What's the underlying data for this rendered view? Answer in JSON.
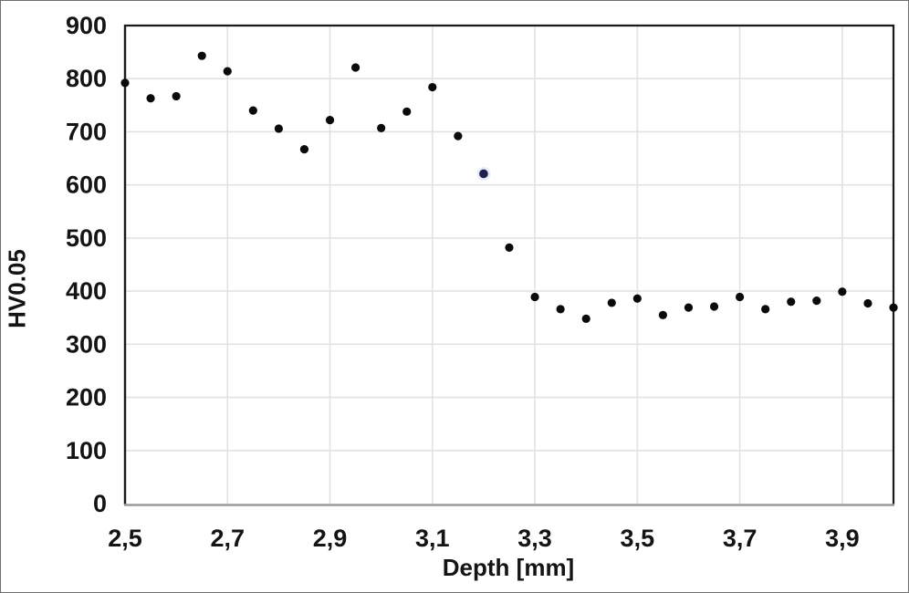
{
  "chart_data": {
    "type": "scatter",
    "title": "",
    "xlabel": "Depth [mm]",
    "ylabel": "HV0.05",
    "xlim": [
      2.5,
      4.0
    ],
    "ylim": [
      0,
      900
    ],
    "grid": true,
    "legend": "none",
    "decimal_separator": ",",
    "marker_color": "#0a0a0a",
    "gridline_color": "#e2e2e2",
    "plot_border_color": "#1a1a1a",
    "x_axis_line_color": "#9a9a9a",
    "x_ticks": [
      {
        "label": "2,5",
        "value": 2.5
      },
      {
        "label": "2,7",
        "value": 2.7
      },
      {
        "label": "2,9",
        "value": 2.9
      },
      {
        "label": "3,1",
        "value": 3.1
      },
      {
        "label": "3,3",
        "value": 3.3
      },
      {
        "label": "3,5",
        "value": 3.5
      },
      {
        "label": "3,7",
        "value": 3.7
      },
      {
        "label": "3,9",
        "value": 3.9
      }
    ],
    "y_ticks": [
      {
        "label": "0",
        "value": 0
      },
      {
        "label": "100",
        "value": 100
      },
      {
        "label": "200",
        "value": 200
      },
      {
        "label": "300",
        "value": 300
      },
      {
        "label": "400",
        "value": 400
      },
      {
        "label": "500",
        "value": 500
      },
      {
        "label": "600",
        "value": 600
      },
      {
        "label": "700",
        "value": 700
      },
      {
        "label": "800",
        "value": 800
      },
      {
        "label": "900",
        "value": 900
      }
    ],
    "x": [
      2.5,
      2.55,
      2.6,
      2.65,
      2.7,
      2.75,
      2.8,
      2.85,
      2.9,
      2.95,
      3.0,
      3.05,
      3.1,
      3.15,
      3.2,
      3.25,
      3.3,
      3.35,
      3.4,
      3.45,
      3.5,
      3.55,
      3.6,
      3.65,
      3.7,
      3.75,
      3.8,
      3.85,
      3.9,
      3.95,
      4.0
    ],
    "y": [
      792,
      763,
      767,
      843,
      814,
      740,
      706,
      667,
      722,
      821,
      707,
      738,
      784,
      692,
      621,
      482,
      389,
      366,
      348,
      378,
      386,
      355,
      369,
      371,
      389,
      366,
      380,
      382,
      399,
      377,
      369
    ],
    "highlighted_point": {
      "index": 14,
      "x": 3.2,
      "y": 621,
      "color": "#20204e",
      "halo_color": "#c9d4f0"
    }
  }
}
